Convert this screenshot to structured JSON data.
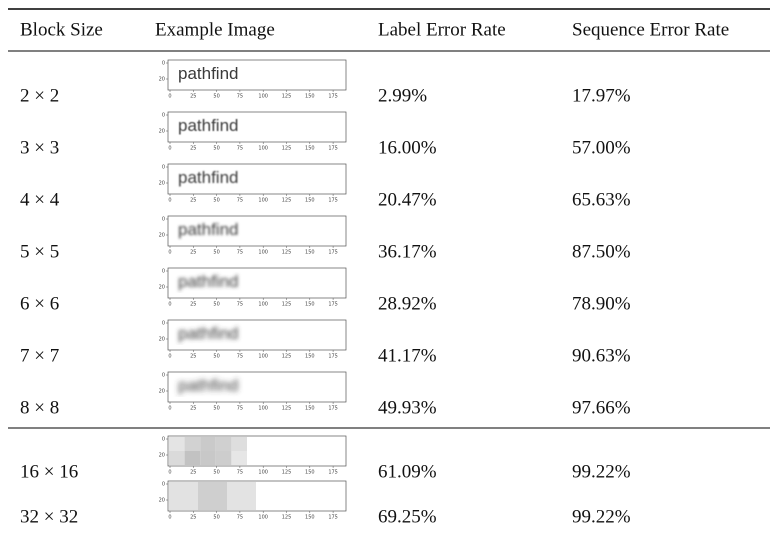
{
  "table": {
    "header": [
      "Block Size",
      "Example Image",
      "Label Error Rate",
      "Sequence Error Rate"
    ],
    "row_groups": [
      [
        [
          "2 × 2",
          "2.99%",
          "17.97%"
        ],
        [
          "3 × 3",
          "16.00%",
          "57.00%"
        ],
        [
          "4 × 4",
          "20.47%",
          "65.63%"
        ],
        [
          "5 × 5",
          "36.17%",
          "87.50%"
        ],
        [
          "6 × 6",
          "28.92%",
          "78.90%"
        ],
        [
          "7 × 7",
          "41.17%",
          "90.63%"
        ],
        [
          "8 × 8",
          "49.93%",
          "97.66%"
        ]
      ],
      [
        [
          "16 × 16",
          "61.09%",
          "99.22%"
        ],
        [
          "32 × 32",
          "69.25%",
          "99.22%"
        ]
      ]
    ]
  },
  "example_image": {
    "word": "pathfind",
    "yticks": [
      "0",
      "20"
    ],
    "xticks": [
      "0",
      "25",
      "50",
      "75",
      "100",
      "125",
      "150",
      "175"
    ]
  }
}
